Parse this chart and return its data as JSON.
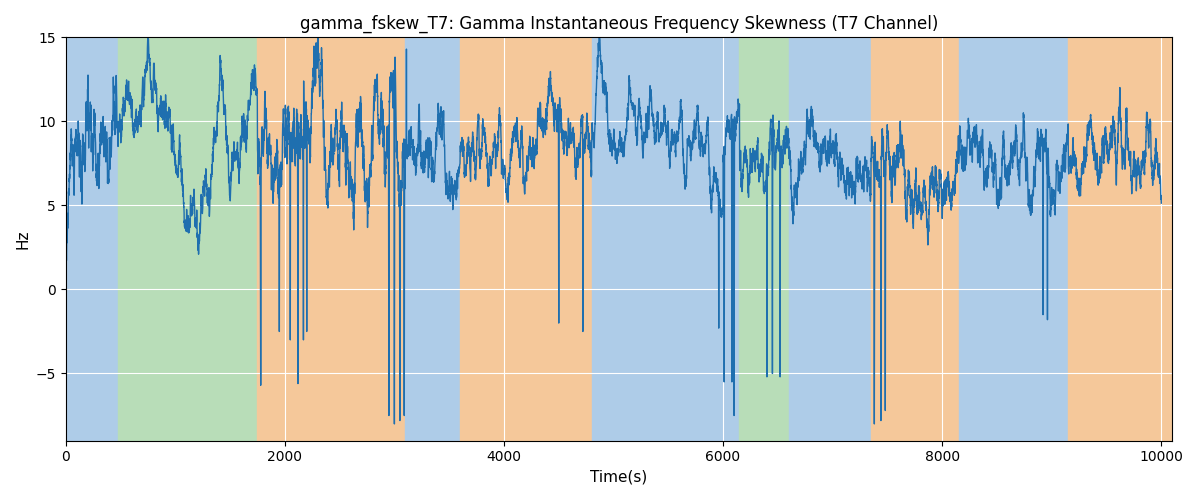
{
  "title": "gamma_fskew_T7: Gamma Instantaneous Frequency Skewness (T7 Channel)",
  "xlabel": "Time(s)",
  "ylabel": "Hz",
  "xlim": [
    0,
    10100
  ],
  "ylim": [
    -9,
    15
  ],
  "yticks": [
    -5,
    0,
    5,
    10,
    15
  ],
  "xticks": [
    0,
    2000,
    4000,
    6000,
    8000,
    10000
  ],
  "bands": [
    [
      0,
      480,
      "#AECCE8"
    ],
    [
      480,
      1750,
      "#B8DDB8"
    ],
    [
      1750,
      2100,
      "#F5C89A"
    ],
    [
      2100,
      3100,
      "#F5C89A"
    ],
    [
      3100,
      3600,
      "#AECCE8"
    ],
    [
      3600,
      4800,
      "#F5C89A"
    ],
    [
      4800,
      6000,
      "#AECCE8"
    ],
    [
      6000,
      6150,
      "#AECCE8"
    ],
    [
      6150,
      6600,
      "#B8DDB8"
    ],
    [
      6600,
      7350,
      "#AECCE8"
    ],
    [
      7350,
      8150,
      "#F5C89A"
    ],
    [
      8150,
      9150,
      "#AECCE8"
    ],
    [
      9150,
      10200,
      "#F5C89A"
    ]
  ],
  "line_color": "#1F6FAF",
  "line_width": 1.0,
  "seed": 42,
  "n_points": 10000,
  "t_end": 10000
}
